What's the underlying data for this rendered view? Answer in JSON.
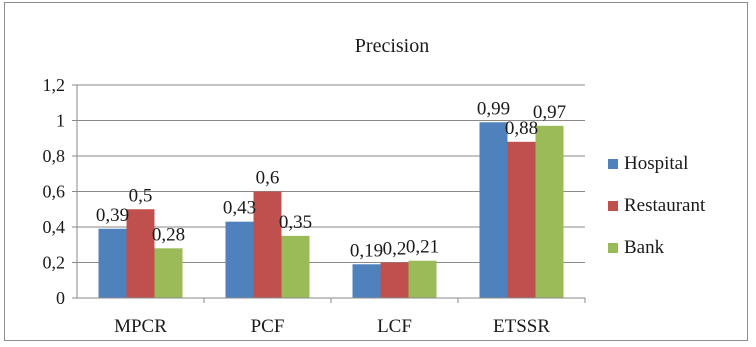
{
  "chart_data": {
    "type": "bar",
    "title": "Precision",
    "categories": [
      "MPCR",
      "PCF",
      "LCF",
      "ETSSR"
    ],
    "series": [
      {
        "name": "Hospital",
        "color": "#4f81bd",
        "values": [
          0.39,
          0.43,
          0.19,
          0.99
        ],
        "labels": [
          "0,39",
          "0,43",
          "0,19",
          "0,99"
        ]
      },
      {
        "name": "Restaurant",
        "color": "#c0504d",
        "values": [
          0.5,
          0.6,
          0.2,
          0.88
        ],
        "labels": [
          "0,5",
          "0,6",
          "0,2",
          "0,88"
        ]
      },
      {
        "name": "Bank",
        "color": "#9bbb59",
        "values": [
          0.28,
          0.35,
          0.21,
          0.97
        ],
        "labels": [
          "0,28",
          "0,35",
          "0,21",
          "0,97"
        ]
      }
    ],
    "ylim": [
      0,
      1.2
    ],
    "yticks": [
      0,
      0.2,
      0.4,
      0.6,
      0.8,
      1,
      1.2
    ],
    "ytick_labels": [
      "0",
      "0,2",
      "0,4",
      "0,6",
      "0,8",
      "1",
      "1,2"
    ],
    "grid": true,
    "legend": "right"
  }
}
